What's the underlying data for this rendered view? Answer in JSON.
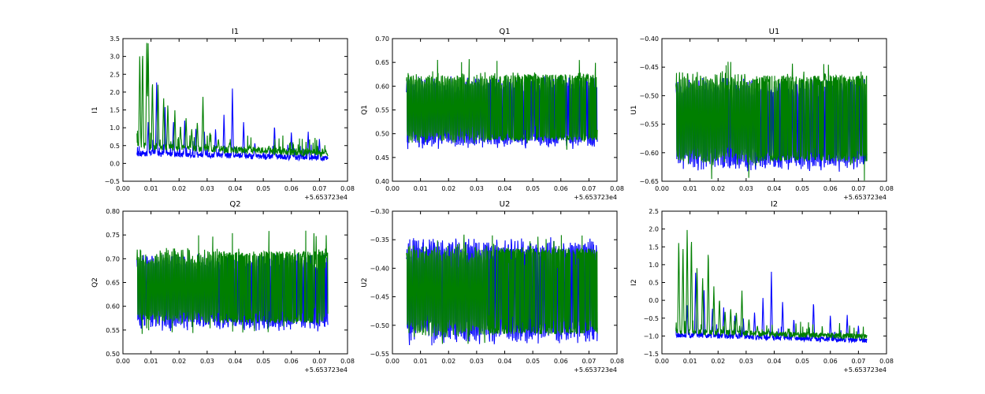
{
  "chart_data": [
    {
      "type": "line",
      "title": "I1",
      "ylabel": "I1",
      "xlim": [
        0.0,
        0.08
      ],
      "ylim": [
        -0.5,
        3.5
      ],
      "xticks": [
        "0.00",
        "0.01",
        "0.02",
        "0.03",
        "0.04",
        "0.05",
        "0.06",
        "0.07",
        "0.08"
      ],
      "yticks": [
        "−0.5",
        "0.0",
        "0.5",
        "1.0",
        "1.5",
        "2.0",
        "2.5",
        "3.0",
        "3.5"
      ],
      "x_offset_label": "+5.653723e4",
      "series": [
        {
          "name": "blue",
          "color": "#0000ff",
          "x_range": [
            0.005,
            0.073
          ],
          "baseline_start": 0.25,
          "baseline_end": 0.12,
          "noise": 0.08,
          "spikes": [
            [
              0.009,
              1.2
            ],
            [
              0.012,
              2.3
            ],
            [
              0.015,
              1.6
            ],
            [
              0.018,
              1.2
            ],
            [
              0.022,
              1.2
            ],
            [
              0.026,
              1.0
            ],
            [
              0.029,
              0.9
            ],
            [
              0.033,
              1.0
            ],
            [
              0.036,
              1.4
            ],
            [
              0.039,
              2.1
            ],
            [
              0.043,
              1.2
            ],
            [
              0.047,
              0.6
            ],
            [
              0.054,
              1.1
            ],
            [
              0.06,
              0.9
            ],
            [
              0.066,
              0.9
            ],
            [
              0.07,
              0.7
            ]
          ]
        },
        {
          "name": "green",
          "color": "#007f00",
          "x_range": [
            0.005,
            0.073
          ],
          "baseline_start": 0.45,
          "baseline_end": 0.25,
          "noise": 0.1,
          "spikes": [
            [
              0.006,
              3.2
            ],
            [
              0.007,
              3.3
            ],
            [
              0.0085,
              3.4
            ],
            [
              0.009,
              3.5
            ],
            [
              0.0105,
              2.4
            ],
            [
              0.0125,
              2.3
            ],
            [
              0.0145,
              1.9
            ],
            [
              0.016,
              1.7
            ],
            [
              0.0185,
              1.5
            ],
            [
              0.0205,
              1.1
            ],
            [
              0.0225,
              1.3
            ],
            [
              0.0245,
              1.0
            ],
            [
              0.0265,
              1.2
            ],
            [
              0.0285,
              1.9
            ],
            [
              0.031,
              0.9
            ],
            [
              0.034,
              0.7
            ],
            [
              0.038,
              0.6
            ],
            [
              0.045,
              0.5
            ],
            [
              0.052,
              0.5
            ]
          ]
        }
      ]
    },
    {
      "type": "line",
      "title": "Q1",
      "ylabel": "Q1",
      "xlim": [
        0.0,
        0.08
      ],
      "ylim": [
        0.4,
        0.7
      ],
      "xticks": [
        "0.00",
        "0.01",
        "0.02",
        "0.03",
        "0.04",
        "0.05",
        "0.06",
        "0.07",
        "0.08"
      ],
      "yticks": [
        "0.40",
        "0.45",
        "0.50",
        "0.55",
        "0.60",
        "0.65",
        "0.70"
      ],
      "x_offset_label": "+5.653723e4",
      "series": [
        {
          "name": "blue",
          "color": "#0000ff",
          "x_range": [
            0.005,
            0.073
          ],
          "low": 0.48,
          "high": 0.61
        },
        {
          "name": "green",
          "color": "#007f00",
          "x_range": [
            0.005,
            0.073
          ],
          "low": 0.49,
          "high": 0.62,
          "dense_until": 0.034,
          "max": 0.66,
          "min": 0.46
        }
      ]
    },
    {
      "type": "line",
      "title": "U1",
      "ylabel": "U1",
      "xlim": [
        0.0,
        0.08
      ],
      "ylim": [
        -0.65,
        -0.4
      ],
      "xticks": [
        "0.00",
        "0.01",
        "0.02",
        "0.03",
        "0.04",
        "0.05",
        "0.06",
        "0.07",
        "0.08"
      ],
      "yticks": [
        "−0.65",
        "−0.60",
        "−0.55",
        "−0.50",
        "−0.45",
        "−0.40"
      ],
      "x_offset_label": "+5.653723e4",
      "series": [
        {
          "name": "blue",
          "color": "#0000ff",
          "x_range": [
            0.005,
            0.073
          ],
          "low": -0.62,
          "high": -0.48
        },
        {
          "name": "green",
          "color": "#007f00",
          "x_range": [
            0.005,
            0.073
          ],
          "low": -0.61,
          "high": -0.47,
          "dense_until": 0.034,
          "max": -0.44,
          "min": -0.65
        }
      ]
    },
    {
      "type": "line",
      "title": "Q2",
      "ylabel": "Q2",
      "xlim": [
        0.0,
        0.08
      ],
      "ylim": [
        0.5,
        0.8
      ],
      "xticks": [
        "0.00",
        "0.01",
        "0.02",
        "0.03",
        "0.04",
        "0.05",
        "0.06",
        "0.07",
        "0.08"
      ],
      "yticks": [
        "0.50",
        "0.55",
        "0.60",
        "0.65",
        "0.70",
        "0.75",
        "0.80"
      ],
      "x_offset_label": "+5.653723e4",
      "series": [
        {
          "name": "blue",
          "color": "#0000ff",
          "x_range": [
            0.005,
            0.073
          ],
          "low": 0.56,
          "high": 0.7
        },
        {
          "name": "green",
          "color": "#007f00",
          "x_range": [
            0.005,
            0.073
          ],
          "low": 0.57,
          "high": 0.71,
          "dense_until": 0.034,
          "max": 0.76,
          "min": 0.54
        }
      ]
    },
    {
      "type": "line",
      "title": "U2",
      "ylabel": "U2",
      "xlim": [
        0.0,
        0.08
      ],
      "ylim": [
        -0.55,
        -0.3
      ],
      "xticks": [
        "0.00",
        "0.01",
        "0.02",
        "0.03",
        "0.04",
        "0.05",
        "0.06",
        "0.07",
        "0.08"
      ],
      "yticks": [
        "−0.55",
        "−0.50",
        "−0.45",
        "−0.40",
        "−0.35",
        "−0.30"
      ],
      "x_offset_label": "+5.653723e4",
      "series": [
        {
          "name": "blue",
          "color": "#0000ff",
          "x_range": [
            0.005,
            0.073
          ],
          "low": -0.52,
          "high": -0.36
        },
        {
          "name": "green",
          "color": "#007f00",
          "x_range": [
            0.005,
            0.073
          ],
          "low": -0.51,
          "high": -0.37,
          "dense_until": 0.034,
          "max": -0.34,
          "min": -0.54
        }
      ]
    },
    {
      "type": "line",
      "title": "I2",
      "ylabel": "I2",
      "xlim": [
        0.0,
        0.08
      ],
      "ylim": [
        -1.5,
        2.5
      ],
      "xticks": [
        "0.00",
        "0.01",
        "0.02",
        "0.03",
        "0.04",
        "0.05",
        "0.06",
        "0.07",
        "0.08"
      ],
      "yticks": [
        "−1.5",
        "−1.0",
        "−0.5",
        "0.0",
        "0.5",
        "1.0",
        "1.5",
        "2.0",
        "2.5"
      ],
      "x_offset_label": "+5.653723e4",
      "series": [
        {
          "name": "blue",
          "color": "#0000ff",
          "x_range": [
            0.005,
            0.073
          ],
          "baseline_start": -1.0,
          "baseline_end": -1.15,
          "noise": 0.07,
          "spikes": [
            [
              0.009,
              -0.1
            ],
            [
              0.012,
              0.8
            ],
            [
              0.015,
              0.3
            ],
            [
              0.018,
              -0.2
            ],
            [
              0.022,
              -0.2
            ],
            [
              0.026,
              -0.4
            ],
            [
              0.029,
              -0.5
            ],
            [
              0.033,
              -0.3
            ],
            [
              0.036,
              0.1
            ],
            [
              0.039,
              0.8
            ],
            [
              0.043,
              0.0
            ],
            [
              0.047,
              -0.5
            ],
            [
              0.054,
              0.0
            ],
            [
              0.06,
              -0.4
            ],
            [
              0.066,
              -0.4
            ],
            [
              0.07,
              -0.7
            ]
          ]
        },
        {
          "name": "green",
          "color": "#007f00",
          "x_range": [
            0.005,
            0.073
          ],
          "baseline_start": -0.9,
          "baseline_end": -1.05,
          "noise": 0.08,
          "spikes": [
            [
              0.006,
              1.8
            ],
            [
              0.0075,
              1.6
            ],
            [
              0.009,
              2.1
            ],
            [
              0.0105,
              1.9
            ],
            [
              0.0125,
              1.0
            ],
            [
              0.0145,
              0.7
            ],
            [
              0.0165,
              1.5
            ],
            [
              0.0185,
              0.4
            ],
            [
              0.0205,
              0.1
            ],
            [
              0.0225,
              -0.3
            ],
            [
              0.0245,
              -0.2
            ],
            [
              0.0265,
              -0.3
            ],
            [
              0.0285,
              0.3
            ],
            [
              0.031,
              -0.5
            ],
            [
              0.034,
              -0.7
            ],
            [
              0.038,
              -0.8
            ],
            [
              0.045,
              -0.8
            ],
            [
              0.052,
              -0.9
            ]
          ]
        }
      ]
    }
  ]
}
